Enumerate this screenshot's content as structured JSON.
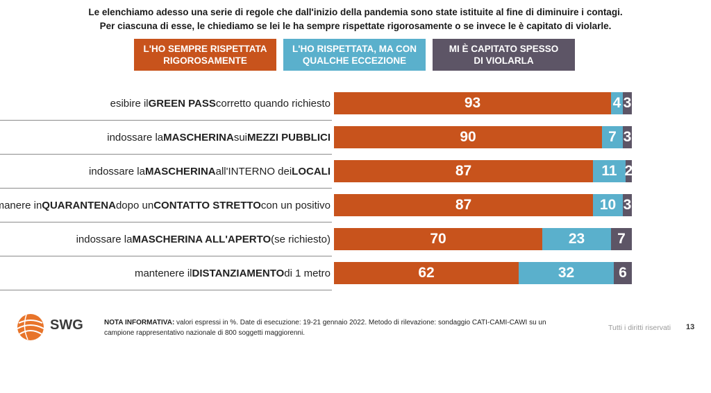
{
  "title_line1": "Le elenchiamo adesso una serie di regole che dall'inizio della pandemia sono state istituite al fine di diminuire i contagi.",
  "title_line2": "Per ciascuna di esse, le chiediamo se lei le ha sempre rispettate rigorosamente o se invece le è capitato di violarle.",
  "legend": [
    {
      "line1": "L'HO SEMPRE RISPETTATA",
      "line2": "RIGOROSAMENTE"
    },
    {
      "line1": "L'HO RISPETTATA, MA CON",
      "line2": "QUALCHE ECCEZIONE"
    },
    {
      "line1": "MI È CAPITATO SPESSO",
      "line2": "DI VIOLARLA"
    }
  ],
  "colors": {
    "always": "#c8531c",
    "exception": "#5ab0cc",
    "often": "#5d5566"
  },
  "chart_data": {
    "type": "bar",
    "orientation": "horizontal",
    "stacked": true,
    "unit": "%",
    "categories": [
      "esibire il GREEN PASS corretto quando richiesto",
      "indossare la MASCHERINA sui MEZZI PUBBLICI",
      "indossare la MASCHERINA all'INTERNO dei LOCALI",
      "rimanere in QUARANTENA dopo un CONTATTO STRETTO con un positivo",
      "indossare la MASCHERINA ALL'APERTO (se richiesto)",
      "mantenere il DISTANZIAMENTO di 1 metro"
    ],
    "series": [
      {
        "name": "L'HO SEMPRE RISPETTATA RIGOROSAMENTE",
        "values": [
          93,
          90,
          87,
          87,
          70,
          62
        ]
      },
      {
        "name": "L'HO RISPETTATA, MA CON QUALCHE ECCEZIONE",
        "values": [
          4,
          7,
          11,
          10,
          23,
          32
        ]
      },
      {
        "name": "MI È CAPITATO SPESSO DI VIOLARLA",
        "values": [
          3,
          3,
          2,
          3,
          7,
          6
        ]
      }
    ],
    "xlim": [
      0,
      100
    ]
  },
  "row_labels": [
    [
      {
        "t": "esibire il ",
        "b": false
      },
      {
        "t": "GREEN PASS",
        "b": true
      },
      {
        "t": " corretto quando richiesto",
        "b": false
      }
    ],
    [
      {
        "t": "indossare la ",
        "b": false
      },
      {
        "t": "MASCHERINA",
        "b": true
      },
      {
        "t": " sui ",
        "b": false
      },
      {
        "t": "MEZZI PUBBLICI",
        "b": true
      }
    ],
    [
      {
        "t": "indossare la ",
        "b": false
      },
      {
        "t": "MASCHERINA",
        "b": true
      },
      {
        "t": " all'INTERNO dei ",
        "b": false
      },
      {
        "t": "LOCALI",
        "b": true
      }
    ],
    [
      {
        "t": "rimanere in ",
        "b": false
      },
      {
        "t": "QUARANTENA",
        "b": true
      },
      {
        "t": " dopo un ",
        "b": false
      },
      {
        "t": "CONTATTO STRETTO",
        "b": true
      },
      {
        "t": " con un positivo",
        "b": false
      }
    ],
    [
      {
        "t": "indossare la ",
        "b": false
      },
      {
        "t": "MASCHERINA ALL'APERTO",
        "b": true
      },
      {
        "t": " (se richiesto)",
        "b": false
      }
    ],
    [
      {
        "t": "mantenere il ",
        "b": false
      },
      {
        "t": "DISTANZIAMENTO",
        "b": true
      },
      {
        "t": " di 1 metro",
        "b": false
      }
    ]
  ],
  "footer": {
    "brand": "SWG",
    "note_label": "NOTA INFORMATIVA:",
    "note_text": " valori espressi in %. Date di esecuzione: 19-21 gennaio 2022. Metodo di rilevazione: sondaggio CATI-CAMI-CAWI su un campione rappresentativo nazionale di 800 soggetti maggiorenni.",
    "rights": "Tutti i diritti riservati",
    "page": "13"
  }
}
